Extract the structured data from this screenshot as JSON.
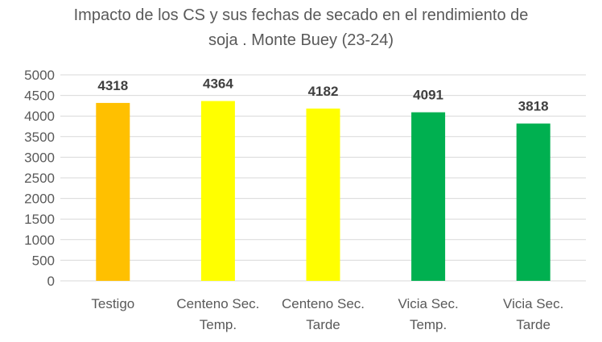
{
  "chart_data": {
    "type": "bar",
    "title_lines": [
      "Impacto de los CS y sus fechas de secado en el rendimiento de",
      "soja . Monte Buey (23-24)"
    ],
    "categories": [
      [
        "Testigo"
      ],
      [
        "Centeno Sec.",
        "Temp."
      ],
      [
        "Centeno Sec.",
        "Tarde"
      ],
      [
        "Vicia Sec.",
        "Temp."
      ],
      [
        "Vicia Sec.",
        "Tarde"
      ]
    ],
    "values": [
      4318,
      4364,
      4182,
      4091,
      3818
    ],
    "data_labels": [
      "4318",
      "4364",
      "4182",
      "4091",
      "3818"
    ],
    "bar_colors": [
      "#FFC000",
      "#FFFF00",
      "#FFFF00",
      "#00B050",
      "#00B050"
    ],
    "ylim": [
      0,
      5000
    ],
    "yticks": [
      0,
      500,
      1000,
      1500,
      2000,
      2500,
      3000,
      3500,
      4000,
      4500,
      5000
    ],
    "grid": true,
    "legend": "none",
    "xlabel": "",
    "ylabel": ""
  }
}
